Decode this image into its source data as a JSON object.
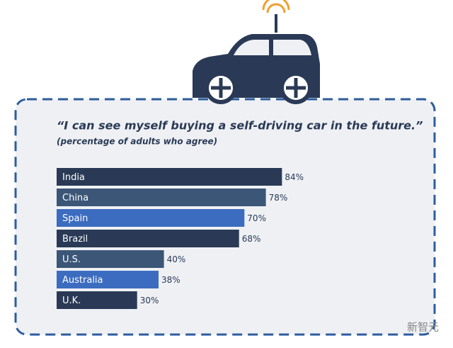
{
  "chart_data": {
    "type": "bar",
    "orientation": "horizontal",
    "title": "“I can see myself buying a self-driving car in the future.”",
    "subtitle": "(percentage of adults who agree)",
    "categories": [
      "India",
      "China",
      "Spain",
      "Brazil",
      "U.S.",
      "Australia",
      "U.K."
    ],
    "values": [
      84,
      78,
      70,
      68,
      40,
      38,
      30
    ],
    "value_labels": [
      "84%",
      "78%",
      "70%",
      "68%",
      "40%",
      "38%",
      "30%"
    ],
    "colors": [
      "#2a3a56",
      "#3b5677",
      "#3c6cc0",
      "#2a3a56",
      "#3b5677",
      "#3c6cc0",
      "#2a3a56"
    ]
  },
  "watermark": "新智元"
}
